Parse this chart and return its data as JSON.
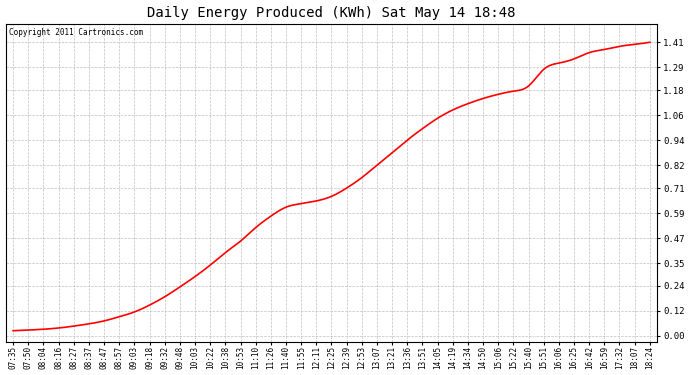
{
  "title": "Daily Energy Produced (KWh) Sat May 14 18:48",
  "copyright": "Copyright 2011 Cartronics.com",
  "line_color": "#ff0000",
  "background_color": "#ffffff",
  "plot_bg_color": "#ffffff",
  "grid_color": "#c0c0c0",
  "yticks": [
    0.0,
    0.12,
    0.24,
    0.35,
    0.47,
    0.59,
    0.71,
    0.82,
    0.94,
    1.06,
    1.18,
    1.29,
    1.41
  ],
  "ylim": [
    -0.03,
    1.5
  ],
  "xtick_labels": [
    "07:35",
    "07:50",
    "08:04",
    "08:16",
    "08:27",
    "08:37",
    "08:47",
    "08:57",
    "09:03",
    "09:18",
    "09:32",
    "09:48",
    "10:03",
    "10:22",
    "10:38",
    "10:53",
    "11:10",
    "11:26",
    "11:40",
    "11:55",
    "12:11",
    "12:25",
    "12:39",
    "12:53",
    "13:07",
    "13:21",
    "13:36",
    "13:51",
    "14:05",
    "14:19",
    "14:34",
    "14:50",
    "15:06",
    "15:22",
    "15:40",
    "15:51",
    "16:06",
    "16:25",
    "16:42",
    "16:59",
    "17:32",
    "18:07",
    "18:24"
  ],
  "curve_points_x": [
    0,
    1,
    2,
    3,
    4,
    5,
    6,
    7,
    8,
    9,
    10,
    11,
    12,
    13,
    14,
    15,
    16,
    17,
    18,
    19,
    20,
    21,
    22,
    23,
    24,
    25,
    26,
    27,
    28,
    29,
    30,
    31,
    32,
    33,
    34,
    35,
    36,
    37,
    38,
    39,
    40,
    41,
    42
  ],
  "curve_points_y": [
    0.025,
    0.028,
    0.032,
    0.038,
    0.047,
    0.058,
    0.072,
    0.092,
    0.115,
    0.148,
    0.188,
    0.235,
    0.285,
    0.34,
    0.4,
    0.455,
    0.52,
    0.575,
    0.618,
    0.635,
    0.648,
    0.67,
    0.71,
    0.76,
    0.82,
    0.88,
    0.94,
    0.995,
    1.045,
    1.085,
    1.115,
    1.14,
    1.16,
    1.175,
    1.2,
    1.28,
    1.31,
    1.33,
    1.36,
    1.375,
    1.39,
    1.4,
    1.41
  ]
}
